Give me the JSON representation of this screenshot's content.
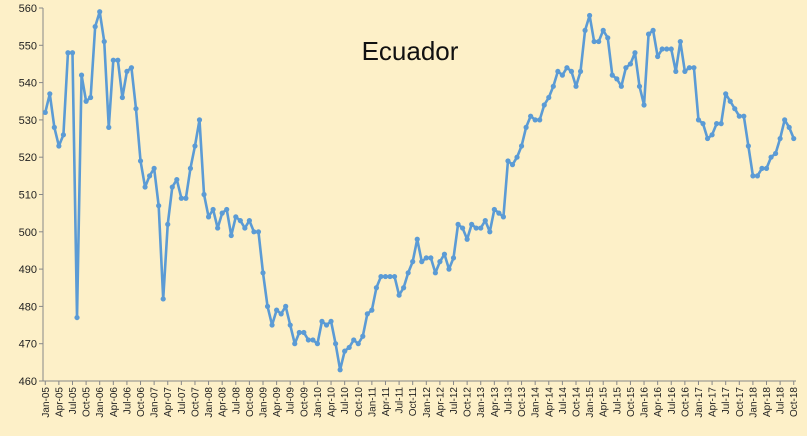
{
  "chart_data": {
    "type": "line",
    "title": "Ecuador",
    "xlabel": "",
    "ylabel": "",
    "ylim": [
      460,
      560
    ],
    "yticks": [
      460,
      470,
      480,
      490,
      500,
      510,
      520,
      530,
      540,
      550,
      560
    ],
    "grid": false,
    "legend": "none",
    "x_tick_labels": [
      "Jan-05",
      "Apr-05",
      "Jul-05",
      "Oct-05",
      "Jan-06",
      "Apr-06",
      "Jul-06",
      "Oct-06",
      "Jan-07",
      "Apr-07",
      "Jul-07",
      "Oct-07",
      "Jan-08",
      "Apr-08",
      "Jul-08",
      "Oct-08",
      "Jan-09",
      "Apr-09",
      "Jul-09",
      "Oct-09",
      "Jan-10",
      "Apr-10",
      "Jul-10",
      "Oct-10",
      "Jan-11",
      "Apr-11",
      "Jul-11",
      "Oct-11",
      "Jan-12",
      "Apr-12",
      "Jul-12",
      "Oct-12",
      "Jan-13",
      "Apr-13",
      "Jul-13",
      "Oct-13",
      "Jan-14",
      "Apr-14",
      "Jul-14",
      "Oct-14",
      "Jan-15",
      "Apr-15",
      "Jul-15",
      "Oct-15",
      "Jan-16",
      "Apr-16",
      "Jul-16",
      "Oct-16",
      "Jan-17",
      "Apr-17",
      "Jul-17",
      "Oct-17",
      "Jan-18",
      "Apr-18",
      "Jul-18",
      "Oct-18"
    ],
    "series": [
      {
        "color": "#5b9bd5",
        "start": "Jan-05",
        "frequency": "monthly",
        "values": [
          532,
          537,
          528,
          523,
          526,
          548,
          548,
          477,
          542,
          535,
          536,
          555,
          559,
          551,
          528,
          546,
          546,
          536,
          543,
          544,
          533,
          519,
          512,
          515,
          517,
          507,
          482,
          502,
          512,
          514,
          509,
          509,
          517,
          523,
          530,
          510,
          504,
          506,
          501,
          505,
          506,
          499,
          504,
          503,
          501,
          503,
          500,
          500,
          489,
          480,
          475,
          479,
          478,
          480,
          475,
          470,
          473,
          473,
          471,
          471,
          470,
          476,
          475,
          476,
          470,
          463,
          468,
          469,
          471,
          470,
          472,
          478,
          479,
          485,
          488,
          488,
          488,
          488,
          483,
          485,
          489,
          492,
          498,
          492,
          493,
          493,
          489,
          492,
          494,
          490,
          493,
          502,
          501,
          498,
          502,
          501,
          501,
          503,
          500,
          506,
          505,
          504,
          519,
          518,
          520,
          523,
          528,
          531,
          530,
          530,
          534,
          536,
          539,
          543,
          542,
          544,
          543,
          539,
          543,
          554,
          558,
          551,
          551,
          554,
          552,
          542,
          541,
          539,
          544,
          545,
          548,
          539,
          534,
          553,
          554,
          547,
          549,
          549,
          549,
          543,
          551,
          543,
          544,
          544,
          530,
          529,
          525,
          526,
          529,
          529,
          537,
          535,
          533,
          531,
          531,
          523,
          515,
          515,
          517,
          517,
          520,
          521,
          525,
          530,
          528,
          525
        ]
      }
    ]
  }
}
